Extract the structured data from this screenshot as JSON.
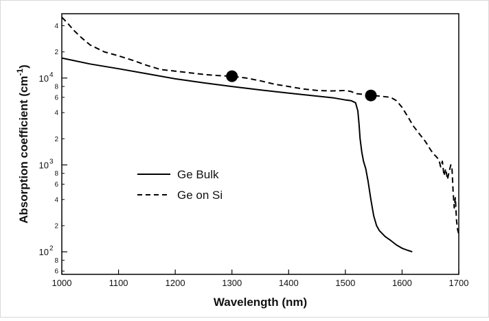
{
  "chart_data": {
    "type": "line",
    "title": "",
    "xlabel": "Wavelength (nm)",
    "ylabel_main": "Absorption coefficient (cm",
    "ylabel_sup": "-1",
    "ylabel_close": ")",
    "xlim": [
      1000,
      1700
    ],
    "ylim": [
      55,
      55000
    ],
    "yscale": "log",
    "x_ticks": [
      1000,
      1100,
      1200,
      1300,
      1400,
      1500,
      1600,
      1700
    ],
    "y_major_ticks": [
      {
        "value": 100,
        "mantissa": "10",
        "exp": "2"
      },
      {
        "value": 1000,
        "mantissa": "10",
        "exp": "3"
      },
      {
        "value": 10000,
        "mantissa": "10",
        "exp": "4"
      }
    ],
    "y_minor_ticks": [
      {
        "value": 60,
        "label": "6"
      },
      {
        "value": 80,
        "label": "8"
      },
      {
        "value": 200,
        "label": "2"
      },
      {
        "value": 400,
        "label": "4"
      },
      {
        "value": 600,
        "label": "6"
      },
      {
        "value": 800,
        "label": "8"
      },
      {
        "value": 2000,
        "label": "2"
      },
      {
        "value": 4000,
        "label": "4"
      },
      {
        "value": 6000,
        "label": "6"
      },
      {
        "value": 8000,
        "label": "8"
      },
      {
        "value": 20000,
        "label": "2"
      },
      {
        "value": 40000,
        "label": "4"
      }
    ],
    "grid": false,
    "legend_position": "center-left",
    "series": [
      {
        "name": "Ge Bulk",
        "style": "solid",
        "color": "#000000",
        "points": [
          [
            1000,
            17000
          ],
          [
            1050,
            14500
          ],
          [
            1100,
            12800
          ],
          [
            1150,
            11200
          ],
          [
            1200,
            9800
          ],
          [
            1250,
            8800
          ],
          [
            1300,
            8000
          ],
          [
            1350,
            7300
          ],
          [
            1400,
            6700
          ],
          [
            1450,
            6200
          ],
          [
            1480,
            5900
          ],
          [
            1500,
            5600
          ],
          [
            1510,
            5500
          ],
          [
            1518,
            5200
          ],
          [
            1522,
            4200
          ],
          [
            1524,
            3000
          ],
          [
            1526,
            2000
          ],
          [
            1529,
            1400
          ],
          [
            1532,
            1100
          ],
          [
            1536,
            900
          ],
          [
            1540,
            650
          ],
          [
            1545,
            400
          ],
          [
            1550,
            260
          ],
          [
            1555,
            200
          ],
          [
            1560,
            175
          ],
          [
            1570,
            150
          ],
          [
            1580,
            135
          ],
          [
            1590,
            120
          ],
          [
            1600,
            110
          ],
          [
            1610,
            104
          ],
          [
            1618,
            100
          ]
        ]
      },
      {
        "name": "Ge on Si",
        "style": "dashed",
        "color": "#000000",
        "points": [
          [
            1000,
            50000
          ],
          [
            1010,
            43000
          ],
          [
            1020,
            36000
          ],
          [
            1035,
            29000
          ],
          [
            1050,
            24000
          ],
          [
            1075,
            20000
          ],
          [
            1100,
            18000
          ],
          [
            1125,
            16000
          ],
          [
            1150,
            14000
          ],
          [
            1175,
            12500
          ],
          [
            1200,
            12000
          ],
          [
            1225,
            11500
          ],
          [
            1250,
            11000
          ],
          [
            1275,
            10700
          ],
          [
            1300,
            10500
          ],
          [
            1325,
            10000
          ],
          [
            1350,
            9300
          ],
          [
            1375,
            8500
          ],
          [
            1400,
            8000
          ],
          [
            1425,
            7500
          ],
          [
            1450,
            7200
          ],
          [
            1475,
            7100
          ],
          [
            1500,
            7200
          ],
          [
            1510,
            7000
          ],
          [
            1520,
            6600
          ],
          [
            1540,
            6400
          ],
          [
            1560,
            6200
          ],
          [
            1580,
            6000
          ],
          [
            1590,
            5500
          ],
          [
            1600,
            4600
          ],
          [
            1610,
            3600
          ],
          [
            1620,
            2800
          ],
          [
            1630,
            2300
          ],
          [
            1640,
            1900
          ],
          [
            1645,
            1700
          ],
          [
            1650,
            1500
          ],
          [
            1655,
            1350
          ],
          [
            1660,
            1250
          ],
          [
            1665,
            1150
          ],
          [
            1668,
            950
          ],
          [
            1671,
            1100
          ],
          [
            1674,
            750
          ],
          [
            1677,
            900
          ],
          [
            1680,
            680
          ],
          [
            1683,
            840
          ],
          [
            1686,
            1000
          ],
          [
            1688,
            920
          ],
          [
            1690,
            500
          ],
          [
            1692,
            320
          ],
          [
            1694,
            420
          ],
          [
            1696,
            230
          ],
          [
            1698,
            180
          ],
          [
            1700,
            160
          ]
        ],
        "markers": [
          {
            "x": 1300,
            "y": 10500
          },
          {
            "x": 1545,
            "y": 6300
          }
        ]
      }
    ]
  }
}
